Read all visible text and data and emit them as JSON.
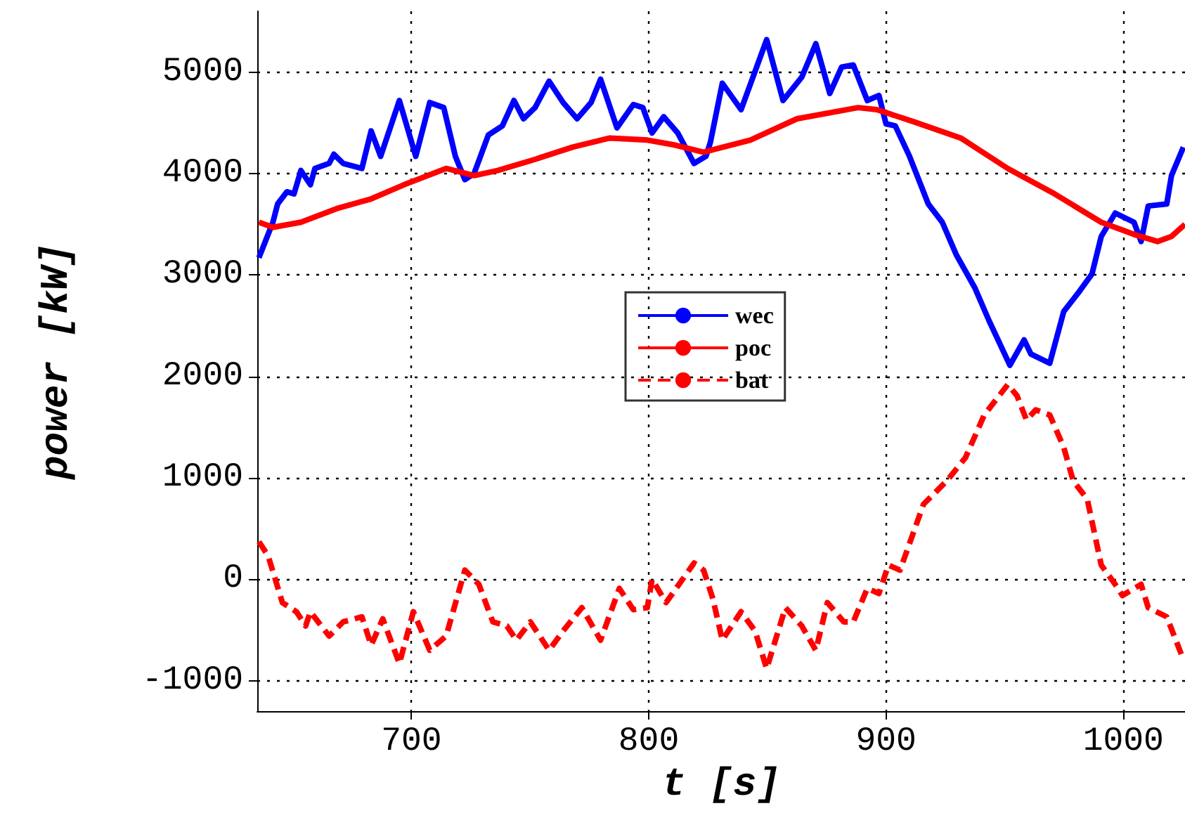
{
  "chart_data": {
    "type": "line",
    "xlabel": "t [s]",
    "ylabel": "power [kW]",
    "xlim": [
      635,
      1026
    ],
    "xticks": [
      700,
      800,
      900,
      1000
    ],
    "ylim": [
      -1300,
      5600
    ],
    "yticks": [
      -1000,
      0,
      1000,
      2000,
      3000,
      4000,
      5000
    ],
    "grid": true,
    "legend": "center",
    "marker": "none",
    "series": [
      {
        "name": "wec",
        "color": "#0000ff",
        "line_style": "solid",
        "x": [
          635.7,
          641.6,
          643.6,
          647.5,
          650.5,
          653.4,
          657.4,
          659.3,
          665.3,
          667.3,
          671.2,
          679.1,
          683.0,
          687.0,
          694.9,
          701.8,
          707.7,
          713.6,
          718.5,
          722.5,
          726.4,
          732.4,
          738.3,
          743.2,
          747.2,
          752.1,
          758.0,
          763.9,
          769.8,
          775.7,
          779.7,
          786.6,
          793.5,
          797.5,
          801.4,
          806.3,
          812.2,
          819.1,
          824.1,
          826.0,
          831.0,
          838.9,
          849.7,
          856.6,
          864.5,
          870.4,
          876.3,
          881.3,
          886.2,
          892.1,
          897.0,
          900.0,
          903.9,
          909.9,
          917.8,
          923.7,
          929.6,
          937.5,
          943.4,
          952.2,
          958.2,
          961.1,
          969.0,
          974.9,
          980.9,
          986.8,
          990.7,
          996.6,
          1004.5,
          1007.5,
          1010.5,
          1018.3,
          1020.3,
          1025.3
        ],
        "values": [
          3170,
          3520,
          3700,
          3820,
          3800,
          4030,
          3890,
          4050,
          4100,
          4190,
          4100,
          4050,
          4420,
          4170,
          4720,
          4170,
          4700,
          4650,
          4170,
          3940,
          4000,
          4380,
          4470,
          4720,
          4540,
          4650,
          4910,
          4700,
          4540,
          4700,
          4930,
          4450,
          4680,
          4650,
          4400,
          4560,
          4400,
          4100,
          4170,
          4310,
          4890,
          4630,
          5320,
          4720,
          4950,
          5280,
          4790,
          5050,
          5070,
          4720,
          4770,
          4490,
          4470,
          4170,
          3700,
          3520,
          3200,
          2870,
          2550,
          2110,
          2360,
          2220,
          2130,
          2640,
          2820,
          3010,
          3380,
          3610,
          3520,
          3330,
          3680,
          3700,
          3980,
          4260
        ]
      },
      {
        "name": "poc",
        "color": "#ff0000",
        "line_style": "solid",
        "x": [
          635.7,
          641.6,
          653.4,
          669.2,
          683.0,
          696.9,
          714.6,
          726.4,
          736.3,
          752.1,
          767.9,
          783.6,
          799.4,
          811.2,
          823.1,
          842.8,
          862.5,
          888.2,
          896.1,
          911.8,
          931.5,
          951.3,
          971.0,
          990.7,
          1004.5,
          1014.4,
          1020.3,
          1026
        ],
        "values": [
          3520,
          3470,
          3520,
          3660,
          3750,
          3890,
          4050,
          3980,
          4030,
          4140,
          4260,
          4350,
          4330,
          4280,
          4210,
          4330,
          4540,
          4650,
          4630,
          4510,
          4350,
          4050,
          3800,
          3520,
          3400,
          3330,
          3380,
          3500
        ]
      },
      {
        "name": "bat",
        "color": "#ff0000",
        "line_style": "dashed",
        "x": [
          635.7,
          639.6,
          645.6,
          651.5,
          655.4,
          657.4,
          665.3,
          671.2,
          679.1,
          683.0,
          687.9,
          694.9,
          700.8,
          707.7,
          714.6,
          722.5,
          728.4,
          734.3,
          740.2,
          744.2,
          750.1,
          758.0,
          763.9,
          771.8,
          779.7,
          787.6,
          793.5,
          799.4,
          801.4,
          807.3,
          819.1,
          823.1,
          827.0,
          831.0,
          838.9,
          844.8,
          849.7,
          857.6,
          864.5,
          870.4,
          875.3,
          882.2,
          886.2,
          892.1,
          897.0,
          901.0,
          905.9,
          915.8,
          925.6,
          933.5,
          941.4,
          951.3,
          955.2,
          959.2,
          963.1,
          969.0,
          974.9,
          978.9,
          984.8,
          990.7,
          996.6,
          999.6,
          1007.5,
          1010.5,
          1018.3,
          1025.3
        ],
        "values": [
          370,
          230,
          -230,
          -320,
          -460,
          -320,
          -560,
          -420,
          -370,
          -650,
          -390,
          -830,
          -320,
          -700,
          -560,
          90,
          -50,
          -420,
          -460,
          -600,
          -420,
          -700,
          -510,
          -280,
          -600,
          -90,
          -300,
          -280,
          0,
          -230,
          160,
          90,
          -190,
          -600,
          -320,
          -510,
          -880,
          -280,
          -460,
          -700,
          -230,
          -420,
          -420,
          -90,
          -140,
          140,
          90,
          740,
          970,
          1200,
          1620,
          1920,
          1810,
          1570,
          1670,
          1620,
          1300,
          970,
          790,
          140,
          -50,
          -160,
          -50,
          -280,
          -370,
          -790
        ]
      }
    ]
  }
}
